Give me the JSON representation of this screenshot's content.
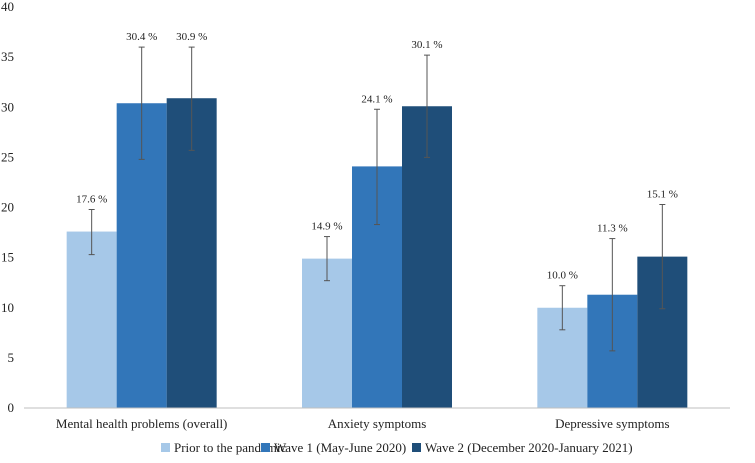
{
  "chart_data": {
    "type": "bar",
    "title": "",
    "xlabel": "",
    "ylabel": "",
    "ylim": [
      0,
      40
    ],
    "yticks": [
      0,
      5,
      10,
      15,
      20,
      25,
      30,
      35,
      40
    ],
    "grid": false,
    "legend_position": "bottom",
    "categories": [
      "Mental health problems (overall)",
      "Anxiety symptoms",
      "Depressive symptoms"
    ],
    "series": [
      {
        "name": "Prior to the pandemic",
        "color": "#A6C8E8",
        "values": [
          17.6,
          14.9,
          10.0
        ],
        "labels": [
          "17.6 %",
          "14.9 %",
          "10.0 %"
        ],
        "error_low": [
          15.3,
          12.7,
          7.8
        ],
        "error_high": [
          19.8,
          17.1,
          12.2
        ]
      },
      {
        "name": "Wave 1 (May-June 2020)",
        "color": "#3276B9",
        "values": [
          30.4,
          24.1,
          11.3
        ],
        "labels": [
          "30.4 %",
          "24.1 %",
          "11.3 %"
        ],
        "error_low": [
          24.8,
          18.3,
          5.7
        ],
        "error_high": [
          36.0,
          29.8,
          16.9
        ]
      },
      {
        "name": "Wave 2 (December 2020-January 2021)",
        "color": "#1F4E79",
        "values": [
          30.9,
          30.1,
          15.1
        ],
        "labels": [
          "30.9 %",
          "30.1 %",
          "15.1 %"
        ],
        "error_low": [
          25.7,
          25.0,
          9.9
        ],
        "error_high": [
          36.0,
          35.2,
          20.3
        ]
      }
    ]
  }
}
